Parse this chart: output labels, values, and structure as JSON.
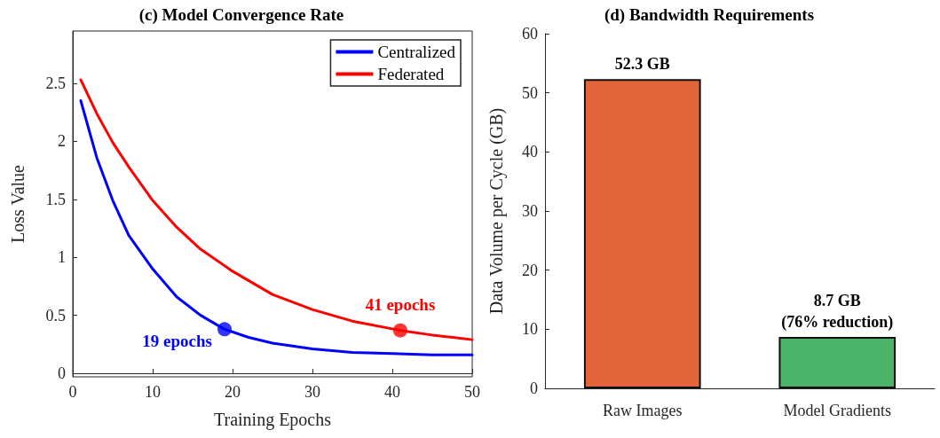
{
  "chart_data": [
    {
      "type": "line",
      "title": "(c) Model Convergence Rate",
      "xlabel": "Training Epochs",
      "ylabel": "Loss Value",
      "xlim": [
        0,
        50
      ],
      "xticks": [
        0,
        10,
        20,
        30,
        40,
        50
      ],
      "ylim": [
        -0.03,
        2.95
      ],
      "yticks": [
        0,
        0.5,
        1,
        1.5,
        2,
        2.5
      ],
      "legend": "top right",
      "marker": "none",
      "line_style": "solid",
      "series": [
        {
          "name": "Centralized",
          "color": "#0000ff",
          "x": [
            1,
            3,
            5,
            7,
            10,
            13,
            16,
            19,
            22,
            25,
            30,
            35,
            40,
            45,
            50
          ],
          "values": [
            2.35,
            1.86,
            1.49,
            1.19,
            0.9,
            0.66,
            0.5,
            0.38,
            0.31,
            0.26,
            0.21,
            0.18,
            0.17,
            0.16,
            0.16
          ]
        },
        {
          "name": "Federated",
          "color": "#ff0000",
          "x": [
            1,
            3,
            5,
            7,
            10,
            13,
            16,
            20,
            25,
            30,
            35,
            41,
            45,
            50
          ],
          "values": [
            2.53,
            2.24,
            1.99,
            1.78,
            1.49,
            1.26,
            1.07,
            0.88,
            0.68,
            0.55,
            0.45,
            0.37,
            0.33,
            0.29
          ]
        },
        {
          "type": "scatter",
          "marker": "circle",
          "color": "#0000ff",
          "x": [
            19
          ],
          "values": [
            0.38
          ]
        },
        {
          "type": "scatter",
          "marker": "circle",
          "color": "#ff0000",
          "x": [
            41
          ],
          "values": [
            0.37
          ]
        }
      ],
      "annotations": [
        {
          "text": "19 epochs",
          "x": 19,
          "y": 0.38
        },
        {
          "text": "41 epochs",
          "x": 41,
          "y": 0.37
        }
      ]
    },
    {
      "type": "bar",
      "title": "(d) Bandwidth Requirements",
      "ylabel": "Data Volume per Cycle (GB)",
      "categories": [
        "Raw Images",
        "Model Gradients"
      ],
      "values": [
        52.3,
        8.7
      ],
      "colors": [
        "#e2663a",
        "#4cb36a"
      ],
      "ylim": [
        0,
        60
      ],
      "yticks": [
        0,
        10,
        20,
        30,
        40,
        50,
        60
      ],
      "value_labels": [
        "52.3 GB",
        "8.7 GB\n(76% reduction)"
      ]
    }
  ]
}
